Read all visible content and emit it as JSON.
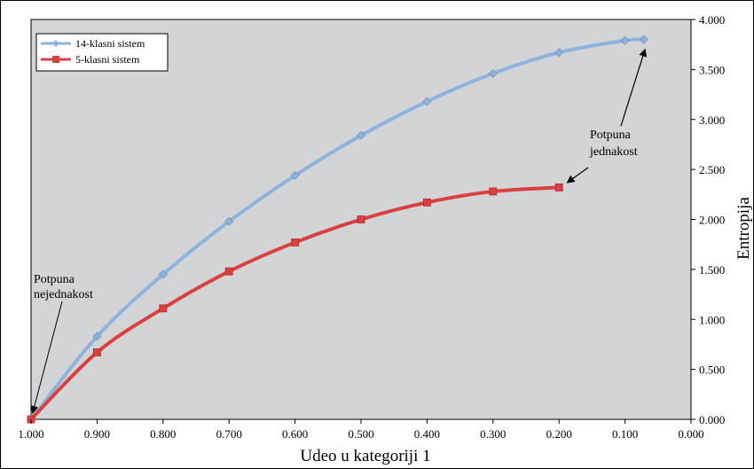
{
  "chart_data": {
    "type": "line",
    "xlabel": "Udeo u kategoriji 1",
    "ylabel": "Entropija",
    "xlim": [
      1.0,
      0.0
    ],
    "ylim": [
      0,
      4
    ],
    "x_ticks": [
      "1.000",
      "0.900",
      "0.800",
      "0.700",
      "0.600",
      "0.500",
      "0.400",
      "0.300",
      "0.200",
      "0.100",
      "0.000"
    ],
    "y_ticks": [
      "0.000",
      "0.500",
      "1.000",
      "1.500",
      "2.000",
      "2.500",
      "3.000",
      "3.500",
      "4.000"
    ],
    "y_axis_side": "right",
    "legend_position": "top-left",
    "grid": false,
    "plot_background": "#d3d4d6",
    "series": [
      {
        "name": "14-klasni sistem",
        "color": "#8fb3dc",
        "marker": "diamond",
        "x": [
          1.0,
          0.9,
          0.8,
          0.7,
          0.6,
          0.5,
          0.4,
          0.3,
          0.2,
          0.1,
          0.0714
        ],
        "y": [
          0.0,
          0.83,
          1.45,
          1.98,
          2.44,
          2.84,
          3.18,
          3.46,
          3.67,
          3.79,
          3.8
        ]
      },
      {
        "name": "5-klasni sistem",
        "color": "#d94040",
        "marker": "square",
        "x": [
          1.0,
          0.9,
          0.8,
          0.7,
          0.6,
          0.5,
          0.4,
          0.3,
          0.2
        ],
        "y": [
          0.0,
          0.67,
          1.11,
          1.48,
          1.77,
          2.0,
          2.17,
          2.28,
          2.32
        ]
      }
    ],
    "annotations": [
      {
        "lines": [
          "Potpuna",
          "nejednakost"
        ],
        "points_to": [
          1.0,
          0.0
        ]
      },
      {
        "lines": [
          "Potpuna",
          "jednakost"
        ],
        "points_to": [
          0.0714,
          3.8
        ],
        "points_to_also": [
          0.2,
          2.32
        ]
      }
    ]
  }
}
